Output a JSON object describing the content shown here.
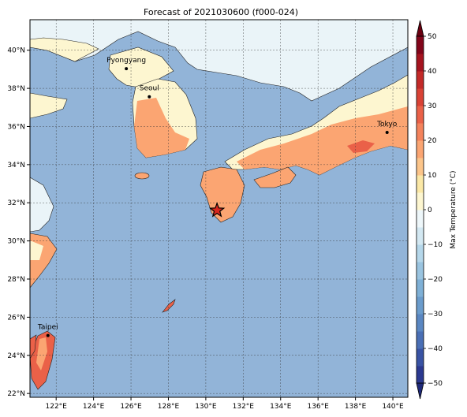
{
  "title": "Forecast of 2021030600 (f000-024)",
  "map": {
    "lon_range": [
      120.6,
      140.8
    ],
    "lat_range": [
      21.8,
      41.6
    ],
    "lon_ticks": [
      {
        "v": 122,
        "label": "122°E"
      },
      {
        "v": 124,
        "label": "124°E"
      },
      {
        "v": 126,
        "label": "126°E"
      },
      {
        "v": 128,
        "label": "128°E"
      },
      {
        "v": 130,
        "label": "130°E"
      },
      {
        "v": 132,
        "label": "132°E"
      },
      {
        "v": 134,
        "label": "134°E"
      },
      {
        "v": 136,
        "label": "136°E"
      },
      {
        "v": 138,
        "label": "138°E"
      },
      {
        "v": 140,
        "label": "140°E"
      }
    ],
    "lat_ticks": [
      {
        "v": 22,
        "label": "22°N"
      },
      {
        "v": 24,
        "label": "24°N"
      },
      {
        "v": 26,
        "label": "26°N"
      },
      {
        "v": 28,
        "label": "28°N"
      },
      {
        "v": 30,
        "label": "30°N"
      },
      {
        "v": 32,
        "label": "32°N"
      },
      {
        "v": 34,
        "label": "34°N"
      },
      {
        "v": 36,
        "label": "36°N"
      },
      {
        "v": 38,
        "label": "38°N"
      },
      {
        "v": 40,
        "label": "40°N"
      }
    ],
    "gridlines": true,
    "ocean_color": "#92b4d8",
    "cities": [
      {
        "name": "Pyongyang",
        "lon": 125.75,
        "lat": 39.03
      },
      {
        "name": "Seoul",
        "lon": 126.98,
        "lat": 37.56
      },
      {
        "name": "Tokyo",
        "lon": 139.69,
        "lat": 35.69
      },
      {
        "name": "Taipei",
        "lon": 121.56,
        "lat": 25.04
      }
    ],
    "marker": {
      "symbol": "star",
      "lon": 130.6,
      "lat": 31.6,
      "color": "#d7261e"
    }
  },
  "colorbar": {
    "label": "Max Temperature (°C)",
    "min": -50,
    "max": 50,
    "ticks": [
      {
        "v": 50,
        "label": "50"
      },
      {
        "v": 40,
        "label": "40"
      },
      {
        "v": 30,
        "label": "30"
      },
      {
        "v": 20,
        "label": "20"
      },
      {
        "v": 10,
        "label": "10"
      },
      {
        "v": 0,
        "label": "0"
      },
      {
        "v": -10,
        "label": "−10"
      },
      {
        "v": -20,
        "label": "−20"
      },
      {
        "v": -30,
        "label": "−30"
      },
      {
        "v": -40,
        "label": "−40"
      },
      {
        "v": -50,
        "label": "−50"
      }
    ],
    "bins": [
      {
        "from": -50,
        "to": -45,
        "color": "#2b3990"
      },
      {
        "from": -45,
        "to": -40,
        "color": "#3953a4"
      },
      {
        "from": -40,
        "to": -35,
        "color": "#4a6fb5"
      },
      {
        "from": -35,
        "to": -30,
        "color": "#5a87c2"
      },
      {
        "from": -30,
        "to": -25,
        "color": "#6b9ccc"
      },
      {
        "from": -25,
        "to": -20,
        "color": "#7fb0d6"
      },
      {
        "from": -20,
        "to": -15,
        "color": "#9ac4e0"
      },
      {
        "from": -15,
        "to": -10,
        "color": "#b5d7ea"
      },
      {
        "from": -10,
        "to": -5,
        "color": "#d3e8f2"
      },
      {
        "from": -5,
        "to": 0,
        "color": "#eef7fa"
      },
      {
        "from": 0,
        "to": 5,
        "color": "#fdf6d0"
      },
      {
        "from": 5,
        "to": 10,
        "color": "#fbe8a6"
      },
      {
        "from": 10,
        "to": 15,
        "color": "#fcc58a"
      },
      {
        "from": 15,
        "to": 20,
        "color": "#fba572"
      },
      {
        "from": 20,
        "to": 25,
        "color": "#f4835c"
      },
      {
        "from": 25,
        "to": 30,
        "color": "#ea6148"
      },
      {
        "from": 30,
        "to": 35,
        "color": "#d94235"
      },
      {
        "from": 35,
        "to": 40,
        "color": "#c32a28"
      },
      {
        "from": 40,
        "to": 45,
        "color": "#a5141f"
      },
      {
        "from": 45,
        "to": 50,
        "color": "#82051a"
      }
    ],
    "extend_low_color": "#1f2a7a",
    "extend_high_color": "#6a0010"
  },
  "colors": {
    "land_cold": "#eaf4f8",
    "land_cool": "#fdf6d0",
    "land_mild": "#fba572",
    "land_warm": "#ea6148",
    "coast": "#222222"
  }
}
